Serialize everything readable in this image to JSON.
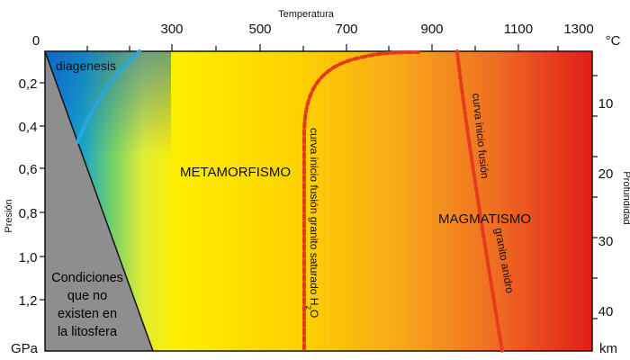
{
  "axes": {
    "top_title": "Temperatura",
    "top_unit": "°C",
    "top_ticks": [
      "0",
      "300",
      "500",
      "700",
      "900",
      "1100",
      "1300"
    ],
    "left_title": "Presión",
    "left_unit": "GPa",
    "left_ticks": [
      "0,2",
      "0,4",
      "0,6",
      "0,8",
      "1,0",
      "1,2"
    ],
    "right_title": "Profundidad",
    "right_unit": "km",
    "right_ticks": [
      "10",
      "20",
      "30",
      "40"
    ]
  },
  "regions": {
    "diagenesis": "diagenesis",
    "metamorfismo": "METAMORFISMO",
    "magmatismo": "MAGMATISMO",
    "conditions": [
      "Condiciones",
      "que no",
      "existen en",
      "la litosfera"
    ]
  },
  "curves": {
    "saturated_main": "curva inicio fusión granito saturado H",
    "saturated_sub": "2",
    "saturated_end": "O",
    "anhydrous_1": "curva inicio fusión",
    "anhydrous_2": "granito anidro"
  },
  "colors": {
    "cool": "#0b79d6",
    "mid": "#f6ec00",
    "hot": "#e2231a",
    "forbidden": "#8e8e8e",
    "curve_water": "#29a8e0",
    "curve_melt": "#e53a1c"
  }
}
